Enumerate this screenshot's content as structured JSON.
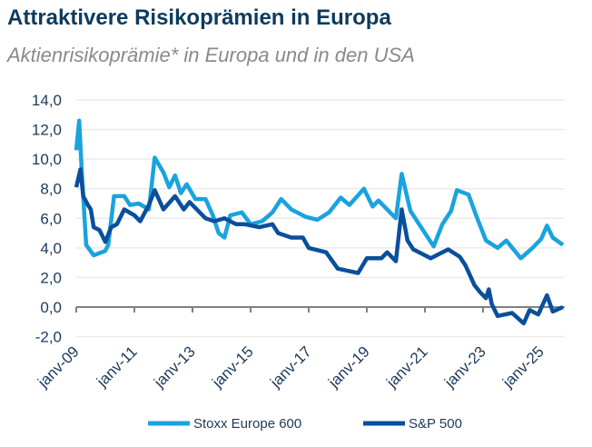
{
  "chart_data": {
    "type": "line",
    "title": "Attraktivere Risikoprämien in Europa",
    "subtitle": "Aktienrisikoprämie* in Europa und in den USA",
    "xlabel": "",
    "ylabel": "",
    "ylim": [
      -2,
      14
    ],
    "yticks": [
      "-2,0",
      "0,0",
      "2,0",
      "4,0",
      "6,0",
      "8,0",
      "10,0",
      "12,0",
      "14,0"
    ],
    "ytick_values": [
      -2,
      0,
      2,
      4,
      6,
      8,
      10,
      12,
      14
    ],
    "xlim": [
      2009,
      2025.75
    ],
    "xticks": [
      "janv-09",
      "janv-11",
      "janv-13",
      "janv-15",
      "janv-17",
      "janv-19",
      "janv-21",
      "janv-23",
      "janv-25"
    ],
    "xtick_values": [
      2009,
      2011,
      2013,
      2015,
      2017,
      2019,
      2021,
      2023,
      2025
    ],
    "grid": true,
    "legend_position": "bottom",
    "series": [
      {
        "name": "Stoxx Europe 600",
        "color": "#1aa3de",
        "x": [
          2009.0,
          2009.1,
          2009.19,
          2009.34,
          2009.6,
          2010.0,
          2010.1,
          2010.3,
          2010.65,
          2010.85,
          2011.15,
          2011.5,
          2011.7,
          2012.0,
          2012.2,
          2012.4,
          2012.6,
          2012.8,
          2013.1,
          2013.45,
          2013.7,
          2013.9,
          2014.1,
          2014.3,
          2014.7,
          2015.0,
          2015.4,
          2015.75,
          2016.05,
          2016.4,
          2016.9,
          2017.3,
          2017.7,
          2018.1,
          2018.4,
          2018.9,
          2019.2,
          2019.4,
          2020.0,
          2020.2,
          2020.5,
          2020.8,
          2021.3,
          2021.6,
          2021.9,
          2022.1,
          2022.5,
          2022.8,
          2023.1,
          2023.5,
          2023.8,
          2024.3,
          2024.7,
          2025.0,
          2025.2,
          2025.4,
          2025.75
        ],
        "values": [
          10.6,
          12.6,
          9.1,
          4.2,
          3.5,
          3.8,
          4.2,
          7.5,
          7.5,
          6.9,
          7.0,
          6.6,
          10.1,
          9.1,
          8.1,
          8.9,
          7.7,
          8.3,
          7.3,
          7.3,
          6.2,
          5.0,
          4.7,
          6.2,
          6.4,
          5.6,
          5.8,
          6.4,
          7.3,
          6.6,
          6.1,
          5.9,
          6.4,
          7.4,
          6.9,
          8.0,
          6.8,
          7.2,
          6.0,
          9.0,
          6.5,
          5.6,
          4.1,
          5.6,
          6.5,
          7.9,
          7.6,
          6.0,
          4.5,
          4.0,
          4.5,
          3.3,
          4.0,
          4.6,
          5.5,
          4.7,
          4.2
        ]
      },
      {
        "name": "S&P 500",
        "color": "#0a4f9c",
        "x": [
          2009.0,
          2009.14,
          2009.24,
          2009.4,
          2009.5,
          2009.6,
          2009.8,
          2010.0,
          2010.2,
          2010.4,
          2010.65,
          2011.0,
          2011.2,
          2011.5,
          2011.7,
          2012.0,
          2012.4,
          2012.7,
          2012.9,
          2013.45,
          2013.75,
          2014.1,
          2014.5,
          2014.8,
          2015.3,
          2015.75,
          2015.95,
          2016.4,
          2016.8,
          2017.0,
          2017.6,
          2018.0,
          2018.7,
          2019.0,
          2019.5,
          2019.7,
          2020.0,
          2020.2,
          2020.4,
          2020.6,
          2021.2,
          2021.8,
          2022.2,
          2022.4,
          2022.7,
          2022.9,
          2023.1,
          2023.2,
          2023.3,
          2023.5,
          2024.0,
          2024.4,
          2024.6,
          2024.9,
          2025.2,
          2025.4,
          2025.75
        ],
        "values": [
          8.1,
          9.3,
          7.5,
          6.9,
          6.6,
          5.4,
          5.2,
          4.4,
          5.4,
          5.6,
          6.6,
          6.2,
          5.8,
          6.9,
          7.9,
          6.6,
          7.5,
          6.6,
          7.1,
          6.0,
          5.8,
          6.0,
          5.6,
          5.6,
          5.4,
          5.6,
          5.0,
          4.7,
          4.7,
          4.0,
          3.7,
          2.6,
          2.3,
          3.3,
          3.3,
          3.7,
          3.1,
          6.6,
          4.5,
          3.9,
          3.3,
          3.9,
          3.4,
          2.8,
          1.5,
          1.0,
          0.6,
          1.2,
          0.2,
          -0.6,
          -0.4,
          -1.1,
          -0.2,
          -0.5,
          0.8,
          -0.3,
          0.0
        ]
      }
    ]
  }
}
